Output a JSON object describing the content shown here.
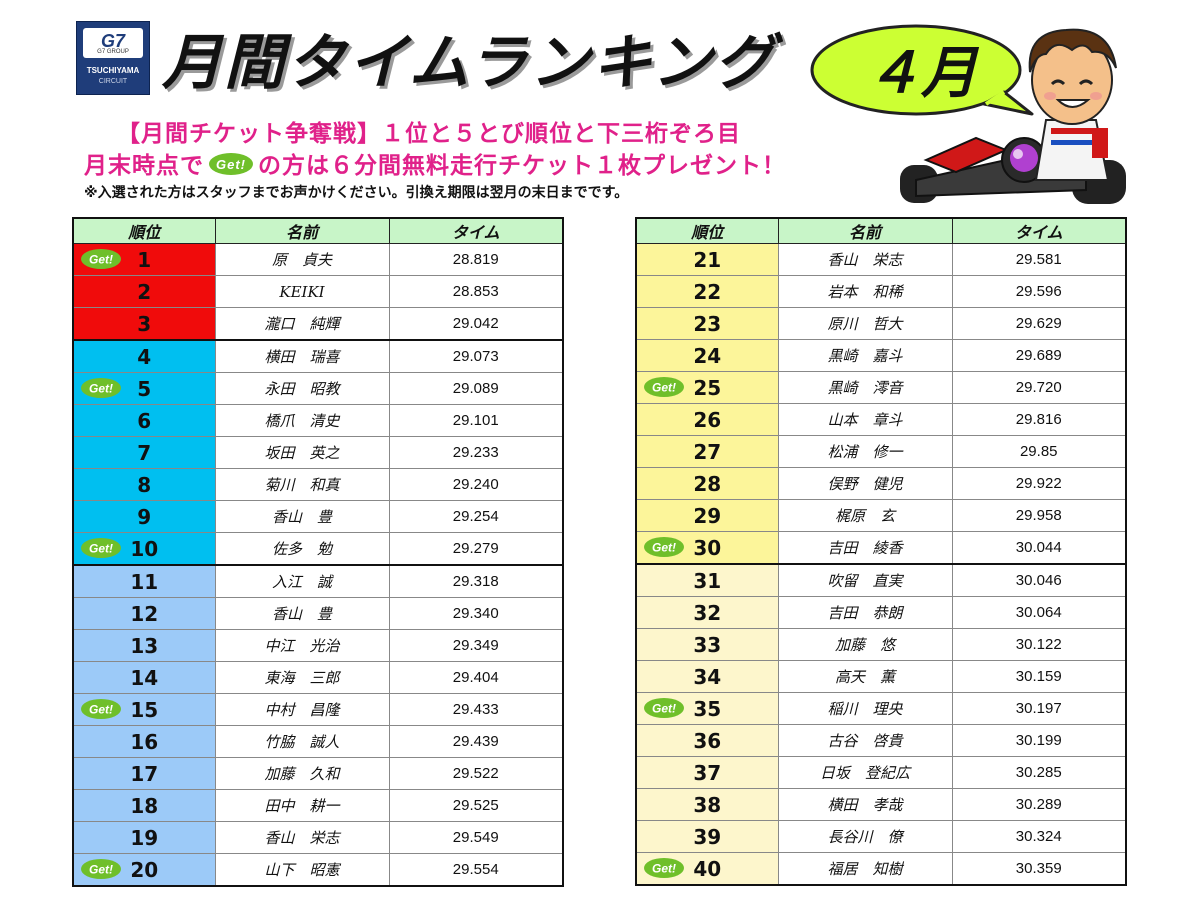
{
  "logo": {
    "brand": "G7",
    "group": "G7 GROUP",
    "name": "TSUCHIYAMA",
    "circuit": "CIRCUIT"
  },
  "title": "月間タイムランキング",
  "month": "４月",
  "promo_line1": "【月間チケット争奪戦】１位と５とび順位と下三桁ぞろ目",
  "promo_line2_before": "月末時点で",
  "promo_line2_after": "の方は６分間無料走行チケット１枚プレゼント！",
  "note": "※入選された方はスタッフまでお声かけください。引換え期限は翌月の末日までです。",
  "get_badge": "Get!",
  "headers": {
    "rank": "順位",
    "name": "名前",
    "time": "タイム"
  },
  "colors": {
    "red": "#f00b0b",
    "cyan": "#00bff0",
    "blue": "#9ccaf8",
    "yellow": "#fcf59a",
    "cream": "#fdf6cc",
    "header": "#c8f5c8",
    "promo": "#e0218a",
    "get_green": "#6fbf2a"
  },
  "left_table": [
    {
      "rank": "1",
      "name": "原　貞夫",
      "time": "28.819",
      "get": true,
      "color": "red"
    },
    {
      "rank": "2",
      "name": "KEIKI",
      "time": "28.853",
      "get": false,
      "color": "red"
    },
    {
      "rank": "3",
      "name": "瀧口　純輝",
      "time": "29.042",
      "get": false,
      "color": "red",
      "sep": true
    },
    {
      "rank": "4",
      "name": "横田　瑞喜",
      "time": "29.073",
      "get": false,
      "color": "cyan"
    },
    {
      "rank": "5",
      "name": "永田　昭教",
      "time": "29.089",
      "get": true,
      "color": "cyan"
    },
    {
      "rank": "6",
      "name": "橋爪　清史",
      "time": "29.101",
      "get": false,
      "color": "cyan"
    },
    {
      "rank": "7",
      "name": "坂田　英之",
      "time": "29.233",
      "get": false,
      "color": "cyan"
    },
    {
      "rank": "8",
      "name": "菊川　和真",
      "time": "29.240",
      "get": false,
      "color": "cyan"
    },
    {
      "rank": "9",
      "name": "香山　豊",
      "time": "29.254",
      "get": false,
      "color": "cyan"
    },
    {
      "rank": "10",
      "name": "佐多　勉",
      "time": "29.279",
      "get": true,
      "color": "cyan",
      "sep": true
    },
    {
      "rank": "11",
      "name": "入江　誠",
      "time": "29.318",
      "get": false,
      "color": "blue"
    },
    {
      "rank": "12",
      "name": "香山　豊",
      "time": "29.340",
      "get": false,
      "color": "blue"
    },
    {
      "rank": "13",
      "name": "中江　光治",
      "time": "29.349",
      "get": false,
      "color": "blue"
    },
    {
      "rank": "14",
      "name": "東海　三郎",
      "time": "29.404",
      "get": false,
      "color": "blue"
    },
    {
      "rank": "15",
      "name": "中村　昌隆",
      "time": "29.433",
      "get": true,
      "color": "blue"
    },
    {
      "rank": "16",
      "name": "竹脇　誠人",
      "time": "29.439",
      "get": false,
      "color": "blue"
    },
    {
      "rank": "17",
      "name": "加藤　久和",
      "time": "29.522",
      "get": false,
      "color": "blue"
    },
    {
      "rank": "18",
      "name": "田中　耕一",
      "time": "29.525",
      "get": false,
      "color": "blue"
    },
    {
      "rank": "19",
      "name": "香山　栄志",
      "time": "29.549",
      "get": false,
      "color": "blue"
    },
    {
      "rank": "20",
      "name": "山下　昭憲",
      "time": "29.554",
      "get": true,
      "color": "blue"
    }
  ],
  "right_table": [
    {
      "rank": "21",
      "name": "香山　栄志",
      "time": "29.581",
      "get": false,
      "color": "yellow"
    },
    {
      "rank": "22",
      "name": "岩本　和稀",
      "time": "29.596",
      "get": false,
      "color": "yellow"
    },
    {
      "rank": "23",
      "name": "原川　哲大",
      "time": "29.629",
      "get": false,
      "color": "yellow"
    },
    {
      "rank": "24",
      "name": "黒崎　嘉斗",
      "time": "29.689",
      "get": false,
      "color": "yellow"
    },
    {
      "rank": "25",
      "name": "黒崎　澪音",
      "time": "29.720",
      "get": true,
      "color": "yellow"
    },
    {
      "rank": "26",
      "name": "山本　章斗",
      "time": "29.816",
      "get": false,
      "color": "yellow"
    },
    {
      "rank": "27",
      "name": "松浦　修一",
      "time": "29.85",
      "get": false,
      "color": "yellow"
    },
    {
      "rank": "28",
      "name": "俣野　健児",
      "time": "29.922",
      "get": false,
      "color": "yellow"
    },
    {
      "rank": "29",
      "name": "梶原　玄",
      "time": "29.958",
      "get": false,
      "color": "yellow"
    },
    {
      "rank": "30",
      "name": "吉田　綾香",
      "time": "30.044",
      "get": true,
      "color": "yellow",
      "sep": true
    },
    {
      "rank": "31",
      "name": "吹留　直実",
      "time": "30.046",
      "get": false,
      "color": "cream"
    },
    {
      "rank": "32",
      "name": "吉田　恭朗",
      "time": "30.064",
      "get": false,
      "color": "cream"
    },
    {
      "rank": "33",
      "name": "加藤　悠",
      "time": "30.122",
      "get": false,
      "color": "cream"
    },
    {
      "rank": "34",
      "name": "高天　薫",
      "time": "30.159",
      "get": false,
      "color": "cream"
    },
    {
      "rank": "35",
      "name": "稲川　理央",
      "time": "30.197",
      "get": true,
      "color": "cream"
    },
    {
      "rank": "36",
      "name": "古谷　啓貴",
      "time": "30.199",
      "get": false,
      "color": "cream"
    },
    {
      "rank": "37",
      "name": "日坂　登紀広",
      "time": "30.285",
      "get": false,
      "color": "cream"
    },
    {
      "rank": "38",
      "name": "横田　孝哉",
      "time": "30.289",
      "get": false,
      "color": "cream"
    },
    {
      "rank": "39",
      "name": "長谷川　僚",
      "time": "30.324",
      "get": false,
      "color": "cream"
    },
    {
      "rank": "40",
      "name": "福居　知樹",
      "time": "30.359",
      "get": true,
      "color": "cream"
    }
  ]
}
